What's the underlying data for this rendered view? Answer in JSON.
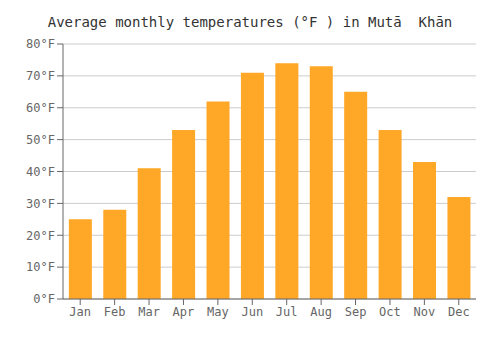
{
  "chart_data": {
    "type": "bar",
    "title": "Average monthly temperatures (°F ) in Mutā  Khān",
    "categories": [
      "Jan",
      "Feb",
      "Mar",
      "Apr",
      "May",
      "Jun",
      "Jul",
      "Aug",
      "Sep",
      "Oct",
      "Nov",
      "Dec"
    ],
    "values": [
      25,
      28,
      41,
      53,
      62,
      71,
      74,
      73,
      65,
      53,
      43,
      32
    ],
    "color": "#FFA726",
    "ylim": [
      0,
      80
    ],
    "yticks": [
      {
        "value": 0,
        "label": "0°F"
      },
      {
        "value": 10,
        "label": "10°F"
      },
      {
        "value": 20,
        "label": "20°F"
      },
      {
        "value": 30,
        "label": "30°F"
      },
      {
        "value": 40,
        "label": "40°F"
      },
      {
        "value": 50,
        "label": "50°F"
      },
      {
        "value": 60,
        "label": "60°F"
      },
      {
        "value": 70,
        "label": "70°F"
      },
      {
        "value": 80,
        "label": "80°F"
      }
    ],
    "grid": true
  }
}
